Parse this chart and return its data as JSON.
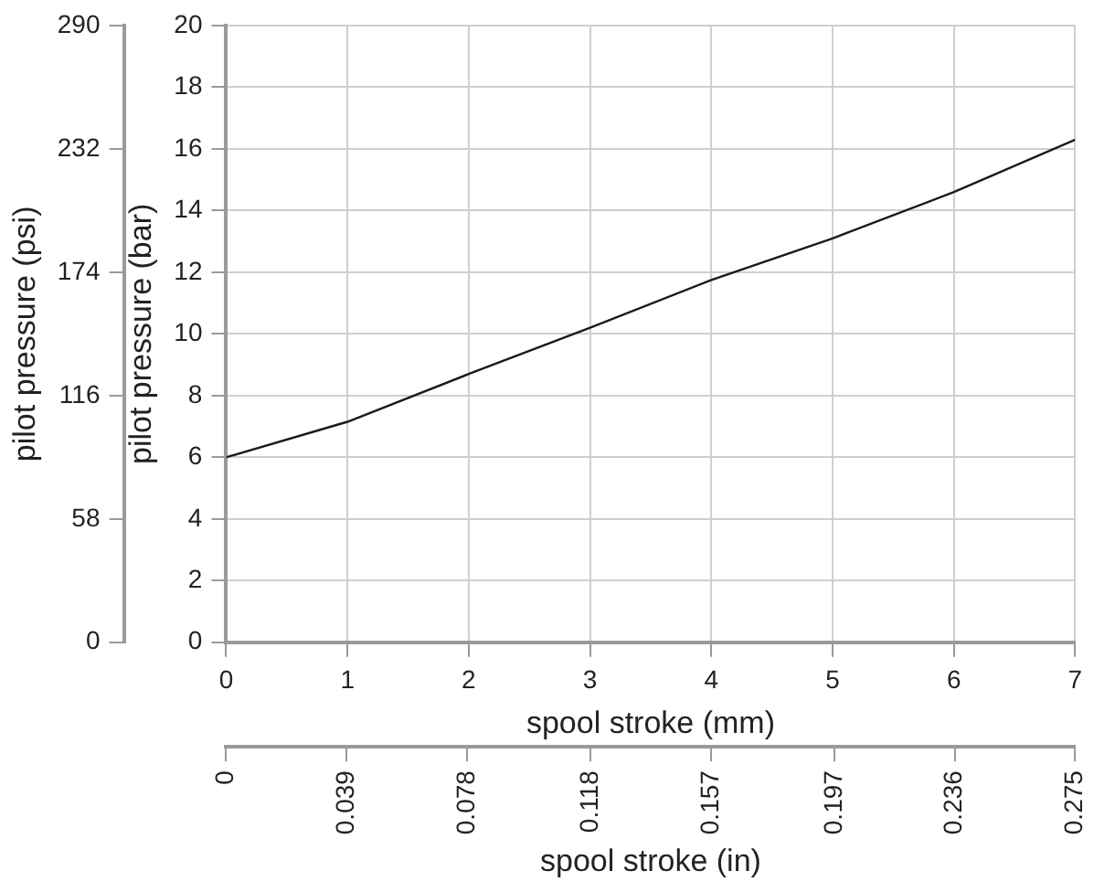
{
  "chart_data": {
    "type": "line",
    "xlabel": "spool stroke (mm)",
    "ylabel": "pilot pressure (bar)",
    "y2label": "pilot pressure (psi)",
    "x2label": "spool stroke (in)",
    "x": [
      0,
      1,
      2,
      3,
      4,
      5,
      6,
      7
    ],
    "series": [
      {
        "color": "#1a1a1a",
        "values": [
          6,
          7.15,
          8.7,
          10.2,
          11.75,
          13.1,
          14.6,
          16.3
        ]
      }
    ],
    "xlim": [
      0,
      7
    ],
    "xticks": [
      0,
      1,
      2,
      3,
      4,
      5,
      6,
      7
    ],
    "ylim": [
      0,
      20
    ],
    "yticks": [
      0,
      2,
      4,
      6,
      8,
      10,
      12,
      14,
      16,
      18,
      20
    ],
    "y2lim": [
      0,
      290
    ],
    "y2ticks": [
      0,
      58,
      116,
      174,
      232,
      290
    ],
    "x2lim": [
      0,
      0.275
    ],
    "x2ticks": [
      0,
      0.039,
      0.078,
      0.118,
      0.157,
      0.197,
      0.236,
      0.275
    ],
    "grid": true,
    "legend": false,
    "marker": "none",
    "line_style": "solid"
  }
}
